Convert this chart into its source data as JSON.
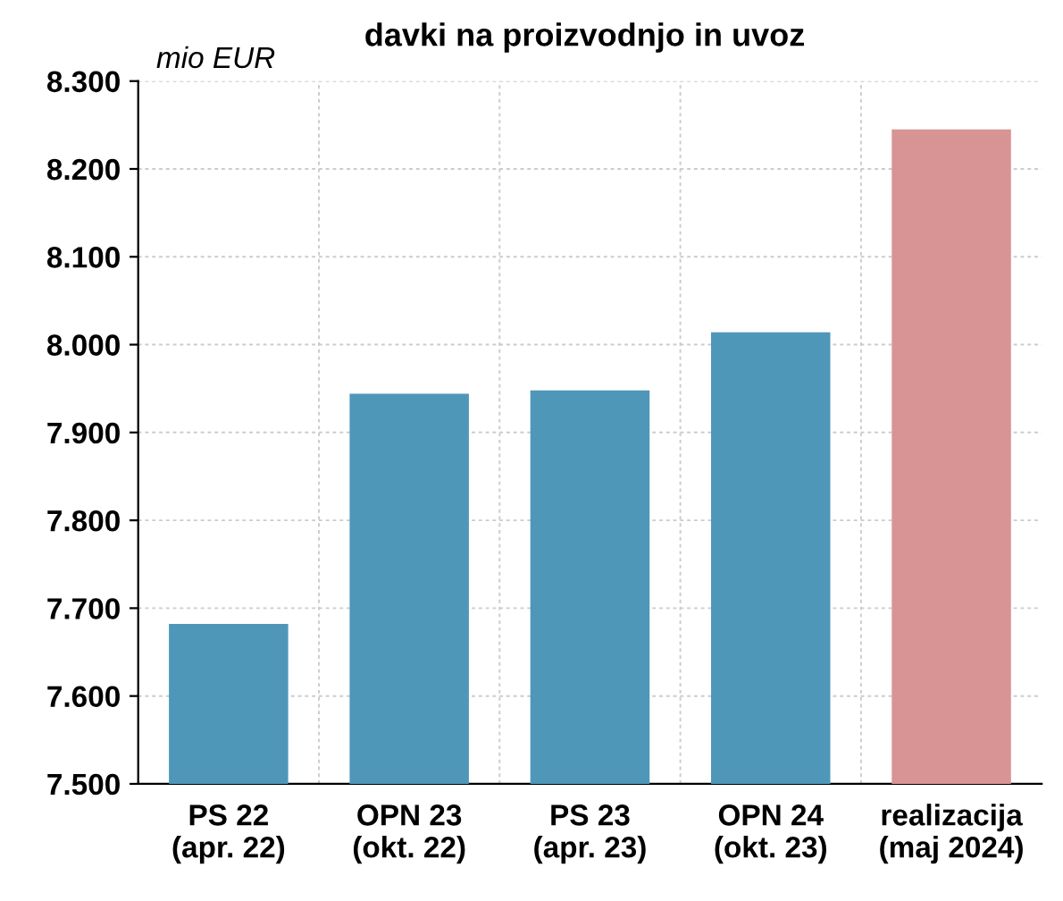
{
  "chart_data": {
    "type": "bar",
    "title": "davki na proizvodnjo in uvoz",
    "ylabel": "mio EUR",
    "categories": [
      "PS 22\n(apr. 22)",
      "OPN 23\n(okt. 22)",
      "PS 23\n(apr. 23)",
      "OPN 24\n(okt. 23)",
      "realizacija\n(maj 2024)"
    ],
    "values": [
      7682,
      7944,
      7948,
      8014,
      8245
    ],
    "colors": [
      "#4f97b8",
      "#4f97b8",
      "#4f97b8",
      "#4f97b8",
      "#d89494"
    ],
    "ylim": [
      7500,
      8300
    ],
    "yticks": [
      {
        "value": 7500,
        "label": "7.500"
      },
      {
        "value": 7600,
        "label": "7.600"
      },
      {
        "value": 7700,
        "label": "7.700"
      },
      {
        "value": 7800,
        "label": "7.800"
      },
      {
        "value": 7900,
        "label": "7.900"
      },
      {
        "value": 8000,
        "label": "8.000"
      },
      {
        "value": 8100,
        "label": "8.100"
      },
      {
        "value": 8200,
        "label": "8.200"
      },
      {
        "value": 8300,
        "label": "8.300"
      }
    ],
    "grid": true
  }
}
